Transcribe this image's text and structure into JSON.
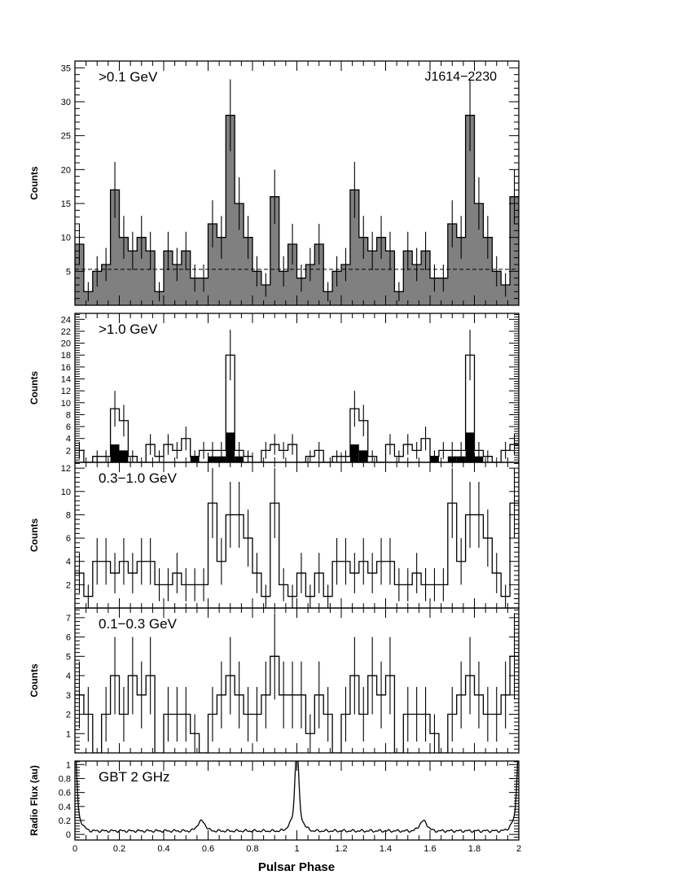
{
  "figure": {
    "source_label": "J1614−2230",
    "x_title": "Pulsar Phase",
    "x_ticks": [
      "0",
      "0.2",
      "0.4",
      "0.6",
      "0.8",
      "1",
      "1.2",
      "1.4",
      "1.6",
      "1.8",
      "2"
    ]
  },
  "chart_data": [
    {
      "type": "histogram",
      "label": ">0.1 GeV",
      "ylabel": "Counts",
      "xlim": [
        0,
        2
      ],
      "ylim": [
        0,
        36
      ],
      "yticks": [
        5,
        10,
        15,
        20,
        25,
        30,
        35
      ],
      "fill": "#808080",
      "errorbars": true,
      "background_level": 5.3,
      "bin_width": 0.04,
      "counts": [
        9,
        2,
        5,
        6,
        17,
        10,
        8,
        10,
        8,
        2,
        8,
        6,
        8,
        4,
        4,
        12,
        10,
        28,
        15,
        10,
        5,
        3,
        16,
        5,
        9,
        4,
        6
      ]
    },
    {
      "type": "histogram",
      "label": ">1.0 GeV",
      "ylabel": "Counts",
      "xlim": [
        0,
        2
      ],
      "ylim": [
        0,
        25
      ],
      "yticks": [
        2,
        4,
        6,
        8,
        10,
        12,
        14,
        16,
        18,
        20,
        22,
        24
      ],
      "errorbars": true,
      "bin_width": 0.04,
      "counts": [
        2,
        0,
        1,
        1,
        9,
        7,
        1,
        0,
        3,
        1,
        3,
        2,
        4,
        1,
        2,
        2,
        2,
        18,
        2,
        1,
        0,
        2,
        3,
        2,
        3,
        0,
        1
      ],
      "filled_series": {
        "fill": "#000000",
        "counts": [
          0,
          0,
          0,
          0,
          3,
          2,
          0,
          0,
          0,
          0,
          0,
          0,
          0,
          1,
          0,
          1,
          1,
          5,
          1,
          0,
          0,
          0,
          0,
          0,
          0,
          0,
          0
        ]
      }
    },
    {
      "type": "histogram",
      "label": "0.3−1.0 GeV",
      "ylabel": "Counts",
      "xlim": [
        0,
        2
      ],
      "ylim": [
        0,
        12.5
      ],
      "yticks": [
        2,
        4,
        6,
        8,
        10,
        12
      ],
      "errorbars": true,
      "bin_width": 0.04,
      "counts": [
        3,
        1,
        4,
        4,
        3,
        4,
        3,
        4,
        4,
        2,
        2,
        3,
        2,
        2,
        2,
        9,
        4,
        8,
        8,
        6,
        3,
        1,
        9,
        2,
        1,
        3,
        1
      ]
    },
    {
      "type": "histogram",
      "label": "0.1−0.3 GeV",
      "ylabel": "Counts",
      "xlim": [
        0,
        2
      ],
      "ylim": [
        0,
        7.5
      ],
      "yticks": [
        1,
        2,
        3,
        4,
        5,
        6,
        7
      ],
      "errorbars": true,
      "bin_width": 0.04,
      "counts": [
        3,
        2,
        0,
        2,
        4,
        2,
        4,
        3,
        4,
        0,
        2,
        2,
        2,
        1,
        0,
        2,
        3,
        4,
        3,
        2,
        2,
        3,
        5,
        3,
        3,
        3,
        1
      ]
    },
    {
      "type": "line",
      "label": "GBT 2 GHz",
      "ylabel": "Radio Flux (au)",
      "xlim": [
        0,
        2
      ],
      "ylim": [
        -0.08,
        1.05
      ],
      "yticks": [
        0,
        0.2,
        0.4,
        0.6,
        0.8,
        1
      ],
      "ytick_labels": [
        "0",
        "0.2",
        "0.4",
        "0.6",
        "0.8",
        "1"
      ],
      "baseline": 0.05,
      "components": [
        {
          "center": 0.0,
          "amplitude": 0.95,
          "width": 0.008
        },
        {
          "center": 0.0,
          "amplitude": 0.25,
          "width": 0.025
        },
        {
          "center": 0.57,
          "amplitude": 0.14,
          "width": 0.018
        },
        {
          "center": 1.0,
          "amplitude": 0.95,
          "width": 0.008
        },
        {
          "center": 1.0,
          "amplitude": 0.25,
          "width": 0.025
        },
        {
          "center": 1.57,
          "amplitude": 0.14,
          "width": 0.018
        },
        {
          "center": 2.0,
          "amplitude": 0.95,
          "width": 0.008
        },
        {
          "center": 2.0,
          "amplitude": 0.25,
          "width": 0.025
        }
      ]
    }
  ]
}
